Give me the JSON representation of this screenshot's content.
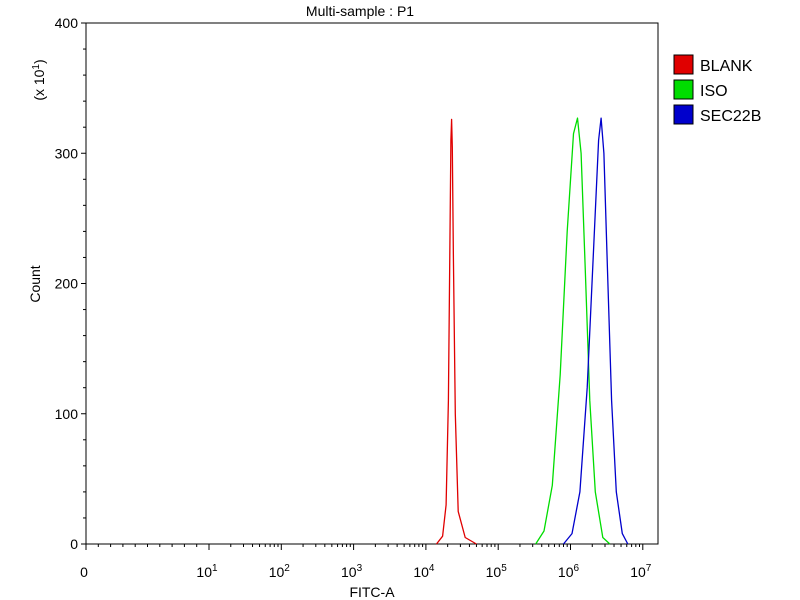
{
  "chart_data": {
    "type": "line",
    "title": "Multi-sample : P1",
    "xlabel": "FITC-A",
    "ylabel": "Count",
    "y_multiplier_label": "(x 10",
    "y_multiplier_exponent": "1",
    "y_multiplier_close": ")",
    "x_scale": "biexponential-log",
    "xlim": [
      0,
      10000000
    ],
    "ylim": [
      0,
      400
    ],
    "y_ticks": [
      0,
      100,
      200,
      300,
      400
    ],
    "x_ticks": [
      {
        "value": 0,
        "base": "0",
        "exp": ""
      },
      {
        "value": 10,
        "base": "10",
        "exp": "1"
      },
      {
        "value": 100,
        "base": "10",
        "exp": "2"
      },
      {
        "value": 1000,
        "base": "10",
        "exp": "3"
      },
      {
        "value": 10000,
        "base": "10",
        "exp": "4"
      },
      {
        "value": 100000,
        "base": "10",
        "exp": "5"
      },
      {
        "value": 1000000,
        "base": "10",
        "exp": "6"
      },
      {
        "value": 10000000,
        "base": "10",
        "exp": "7"
      }
    ],
    "legend_position": "right",
    "series": [
      {
        "name": "BLANK",
        "color": "#e00000",
        "points": [
          [
            14000,
            0
          ],
          [
            17000,
            6
          ],
          [
            19000,
            30
          ],
          [
            20500,
            110
          ],
          [
            21500,
            230
          ],
          [
            22200,
            310
          ],
          [
            22700,
            326
          ],
          [
            23200,
            305
          ],
          [
            24000,
            220
          ],
          [
            25500,
            100
          ],
          [
            28000,
            25
          ],
          [
            35000,
            5
          ],
          [
            50000,
            0
          ]
        ]
      },
      {
        "name": "ISO",
        "color": "#00dd00",
        "points": [
          [
            330000,
            0
          ],
          [
            430000,
            10
          ],
          [
            560000,
            45
          ],
          [
            720000,
            130
          ],
          [
            900000,
            240
          ],
          [
            1100000,
            315
          ],
          [
            1250000,
            327
          ],
          [
            1400000,
            300
          ],
          [
            1600000,
            210
          ],
          [
            1850000,
            110
          ],
          [
            2200000,
            40
          ],
          [
            2800000,
            5
          ],
          [
            3500000,
            0
          ]
        ]
      },
      {
        "name": "SEC22B",
        "color": "#0000cc",
        "points": [
          [
            800000,
            0
          ],
          [
            1050000,
            8
          ],
          [
            1350000,
            40
          ],
          [
            1700000,
            120
          ],
          [
            2100000,
            230
          ],
          [
            2450000,
            310
          ],
          [
            2650000,
            327
          ],
          [
            2900000,
            300
          ],
          [
            3250000,
            210
          ],
          [
            3700000,
            110
          ],
          [
            4300000,
            40
          ],
          [
            5200000,
            8
          ],
          [
            6200000,
            0
          ]
        ]
      }
    ]
  }
}
